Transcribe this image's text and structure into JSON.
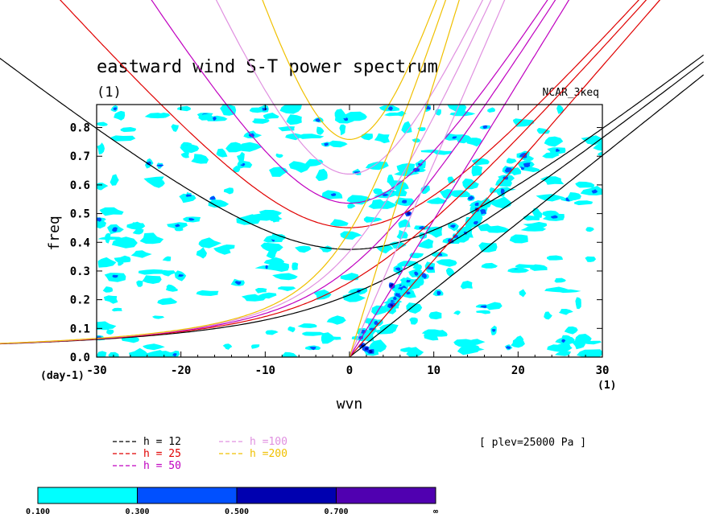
{
  "chart_data": {
    "type": "line",
    "title": "eastward wind S-T power spectrum",
    "subtitle": "(1)",
    "source_label": "NCAR_3keq",
    "xlabel": "wvn",
    "ylabel": "freq",
    "x_unit": "(1)",
    "y_unit": "(day-1)",
    "xlim": [
      -30,
      30
    ],
    "ylim": [
      0,
      0.88
    ],
    "xticks": [
      "-30",
      "-20",
      "-10",
      "0",
      "10",
      "20",
      "30"
    ],
    "yticks": [
      "0.0",
      "0.1",
      "0.2",
      "0.3",
      "0.4",
      "0.5",
      "0.6",
      "0.7",
      "0.8"
    ],
    "level_label": "[ plev=25000 Pa ]",
    "series": [
      {
        "name": "h = 12",
        "color": "#000000",
        "equivalent_depth_m": 12
      },
      {
        "name": "h = 25",
        "color": "#e00000",
        "equivalent_depth_m": 25
      },
      {
        "name": "h = 50",
        "color": "#c000c0",
        "equivalent_depth_m": 50
      },
      {
        "name": "h =100",
        "color": "#e090e0",
        "equivalent_depth_m": 100
      },
      {
        "name": "h =200",
        "color": "#f0c000",
        "equivalent_depth_m": 200
      }
    ],
    "colorbar": {
      "levels": [
        "0.100",
        "0.300",
        "0.500",
        "0.700",
        "∞"
      ],
      "colors": [
        "#00ffff",
        "#0050ff",
        "#0000b0",
        "#5000b0"
      ]
    }
  }
}
